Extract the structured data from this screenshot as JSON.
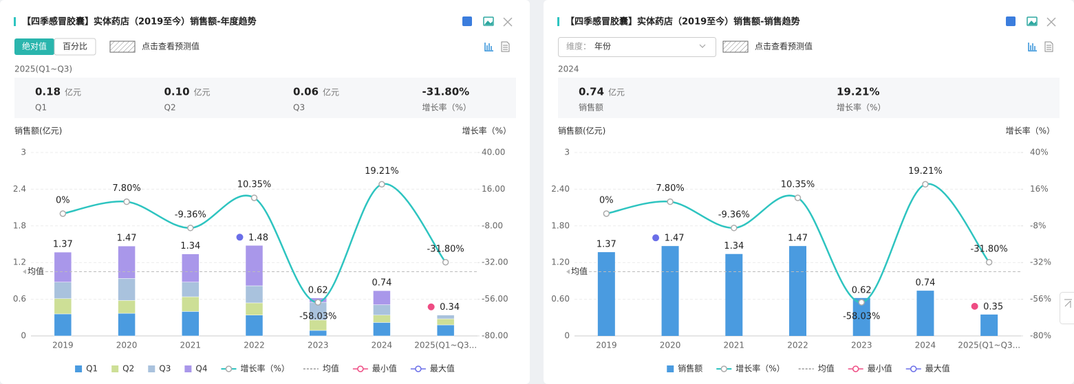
{
  "panels": [
    {
      "title": "【四季感冒胶囊】实体药店（2019至今）销售额-年度趋势",
      "toggle": [
        "绝对值",
        "百分比"
      ],
      "forecast": "点击查看预测值",
      "period": "2025(Q1~Q3)",
      "stats": [
        {
          "value": "0.18",
          "unit": "亿元",
          "label": "Q1"
        },
        {
          "value": "0.10",
          "unit": "亿元",
          "label": "Q2"
        },
        {
          "value": "0.06",
          "unit": "亿元",
          "label": "Q3"
        },
        {
          "value": "-31.80%",
          "label": "增长率（%）"
        }
      ]
    },
    {
      "title": "【四季感冒胶囊】实体药店（2019至今）销售额-销售趋势",
      "dimension": {
        "label": "维度：",
        "value": "年份"
      },
      "forecast": "点击查看预测值",
      "period": "2024",
      "stats": [
        {
          "value": "0.74",
          "unit": "亿元",
          "label": "销售额"
        },
        {
          "value": "19.21%",
          "label": "增长率（%）"
        }
      ]
    }
  ],
  "chart_data": [
    {
      "type": "bar",
      "stacked": true,
      "y_label": "销售额(亿元)",
      "y2_label": "增长率（%）",
      "categories": [
        "2019",
        "2020",
        "2021",
        "2022",
        "2023",
        "2024",
        "2025(Q1~Q3..."
      ],
      "series": [
        {
          "name": "Q1",
          "color": "#4a9be0",
          "values": [
            0.36,
            0.37,
            0.4,
            0.34,
            0.09,
            0.22,
            0.18
          ]
        },
        {
          "name": "Q2",
          "color": "#cddf96",
          "values": [
            0.25,
            0.21,
            0.24,
            0.2,
            0.17,
            0.12,
            0.1
          ]
        },
        {
          "name": "Q3",
          "color": "#a9c2dd",
          "values": [
            0.27,
            0.36,
            0.24,
            0.28,
            0.29,
            0.17,
            0.06
          ]
        },
        {
          "name": "Q4",
          "color": "#a997ea",
          "values": [
            0.49,
            0.53,
            0.46,
            0.66,
            0.07,
            0.23,
            null
          ]
        },
        {
          "name": "增长率（%）",
          "type": "line",
          "axis": "y2",
          "color": "#2ec4c0",
          "values": [
            0,
            7.8,
            -9.36,
            10.35,
            -58.03,
            19.21,
            -31.8
          ],
          "value_labels": [
            "0%",
            "7.80%",
            "-9.36%",
            "10.35%",
            "-58.03%",
            "19.21%",
            "-31.80%"
          ]
        }
      ],
      "totals": [
        1.37,
        1.47,
        1.34,
        1.48,
        0.62,
        0.74,
        0.34
      ],
      "average": {
        "name": "均值",
        "value": 1.05
      },
      "min": {
        "name": "最小值",
        "value": 0.34,
        "color": "#ee4c83"
      },
      "max": {
        "name": "最大值",
        "value": 1.48,
        "color": "#6a6ee8"
      },
      "ylim": [
        0,
        3
      ],
      "yticks": [
        0,
        0.6,
        1.2,
        1.8,
        2.4,
        3
      ],
      "y2lim": [
        -80,
        40
      ],
      "y2ticks": [
        {
          "value": -80,
          "label": "-80.00"
        },
        {
          "value": -56,
          "label": "-56.00"
        },
        {
          "value": -32,
          "label": "-32.00"
        },
        {
          "value": -8,
          "label": "-8.00"
        },
        {
          "value": 16,
          "label": "16.00"
        },
        {
          "value": 40,
          "label": "40.00"
        }
      ],
      "grid": true
    },
    {
      "type": "bar",
      "y_label": "销售额(亿元)",
      "y2_label": "增长率（%）",
      "categories": [
        "2019",
        "2020",
        "2021",
        "2022",
        "2023",
        "2024",
        "2025(Q1~Q3..."
      ],
      "series": [
        {
          "name": "销售额",
          "color": "#4a9be0",
          "values": [
            1.37,
            1.47,
            1.34,
            1.47,
            0.62,
            0.74,
            0.35
          ]
        },
        {
          "name": "增长率（%）",
          "type": "line",
          "axis": "y2",
          "color": "#2ec4c0",
          "values": [
            0,
            7.8,
            -9.36,
            10.35,
            -58.03,
            19.21,
            -31.8
          ],
          "value_labels": [
            "0%",
            "7.80%",
            "-9.36%",
            "10.35%",
            "-58.03%",
            "19.21%",
            "-31.80%"
          ]
        }
      ],
      "average": {
        "name": "均值",
        "value": 1.05
      },
      "min": {
        "name": "最小值",
        "value": 0.35,
        "color": "#ee4c83"
      },
      "max": {
        "name": "最大值",
        "value": 1.47,
        "color": "#6a6ee8"
      },
      "ylim": [
        0,
        3
      ],
      "yticks": [
        0,
        {
          "value": 0.6,
          "label": "0.60"
        },
        {
          "value": 1.2,
          "label": "1.20"
        },
        {
          "value": 1.8,
          "label": "1.80"
        },
        {
          "value": 2.4,
          "label": "2.40"
        },
        3
      ],
      "y2lim": [
        -80,
        40
      ],
      "y2ticks": [
        {
          "value": -80,
          "label": "-80%"
        },
        {
          "value": -56,
          "label": "-56%"
        },
        {
          "value": -32,
          "label": "-32%"
        },
        {
          "value": -8,
          "label": "-8%"
        },
        {
          "value": 16,
          "label": "16%"
        },
        {
          "value": 40,
          "label": "40%"
        }
      ],
      "grid": true
    }
  ]
}
